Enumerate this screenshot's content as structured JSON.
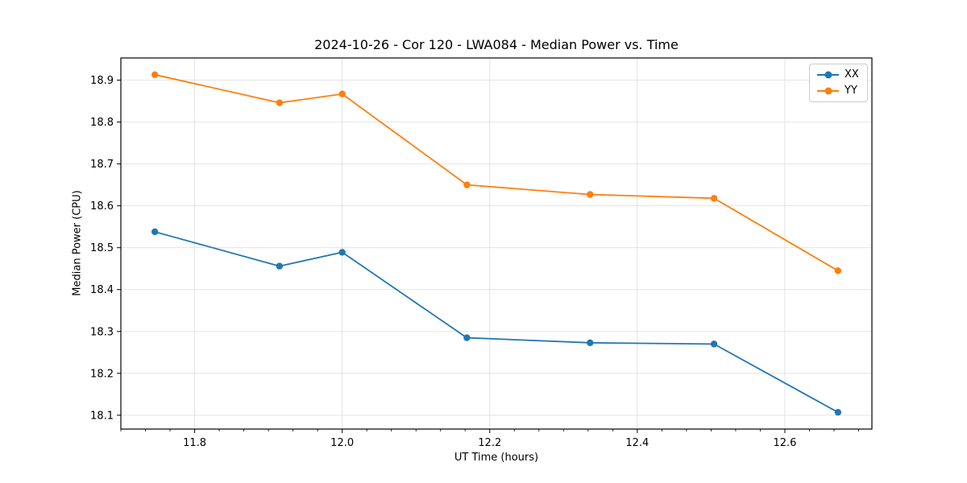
{
  "chart_data": {
    "type": "line",
    "title": "2024-10-26 - Cor 120 - LWA084 - Median Power vs. Time",
    "xlabel": "UT Time (hours)",
    "ylabel": "Median Power (CPU)",
    "x": [
      11.746,
      11.915,
      12.0,
      12.169,
      12.336,
      12.504,
      12.672
    ],
    "series": [
      {
        "name": "XX",
        "color": "#1f77b4",
        "values": [
          18.538,
          18.456,
          18.489,
          18.285,
          18.273,
          18.27,
          18.107
        ]
      },
      {
        "name": "YY",
        "color": "#ff7f0e",
        "values": [
          18.913,
          18.846,
          18.867,
          18.65,
          18.627,
          18.618,
          18.445
        ]
      }
    ],
    "xlim": [
      11.7,
      12.718
    ],
    "ylim": [
      18.067,
      18.953
    ],
    "xticks": [
      11.8,
      12.0,
      12.2,
      12.4,
      12.6
    ],
    "yticks": [
      18.1,
      18.2,
      18.3,
      18.4,
      18.5,
      18.6,
      18.7,
      18.8,
      18.9
    ],
    "x_minor_tick_step": 0.0333333,
    "tick_decimals": 1,
    "grid": true,
    "grid_color": "#e0e0e0",
    "spine_color": "#000000",
    "legend_position": "top-right"
  }
}
